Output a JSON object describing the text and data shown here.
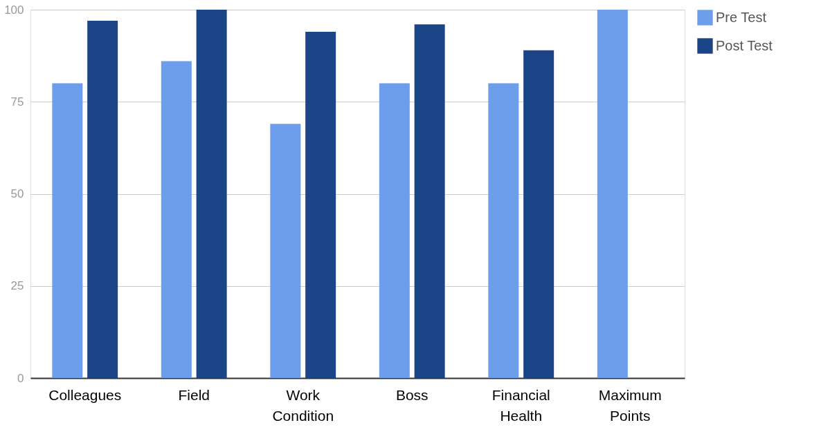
{
  "chart_data": {
    "type": "bar",
    "categories": [
      "Colleagues",
      "Field",
      "Work Condition",
      "Boss",
      "Financial Health",
      "Maximum Points"
    ],
    "series": [
      {
        "name": "Pre Test",
        "color": "#6d9eeb",
        "values": [
          80,
          86,
          69,
          80,
          80,
          100
        ]
      },
      {
        "name": "Post Test",
        "color": "#1c4587",
        "values": [
          97,
          100,
          94,
          96,
          89,
          null
        ]
      }
    ],
    "ylim": [
      0,
      100
    ],
    "yticks": [
      0,
      25,
      50,
      75,
      100
    ],
    "grid": "y",
    "legend": "top right"
  }
}
